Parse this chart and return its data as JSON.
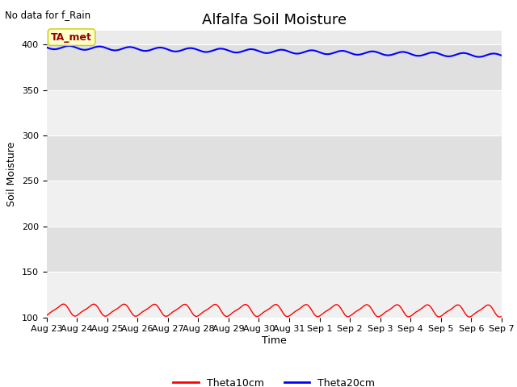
{
  "title": "Alfalfa Soil Moisture",
  "ylabel": "Soil Moisture",
  "xlabel": "Time",
  "no_data_text": "No data for f_Rain",
  "ta_met_label": "TA_met",
  "ylim": [
    100,
    415
  ],
  "yticks": [
    100,
    150,
    200,
    250,
    300,
    350,
    400
  ],
  "n_days": 15,
  "x_tick_labels": [
    "Aug 23",
    "Aug 24",
    "Aug 25",
    "Aug 26",
    "Aug 27",
    "Aug 28",
    "Aug 29",
    "Aug 30",
    "Aug 31",
    "Sep 1",
    "Sep 2",
    "Sep 3",
    "Sep 4",
    "Sep 5",
    "Sep 6",
    "Sep 7"
  ],
  "blue_line_color": "#0000ff",
  "red_line_color": "#ff0000",
  "bg_color": "#ebebeb",
  "band_color_light": "#f0f0f0",
  "band_color_dark": "#e0e0e0",
  "fig_bg_color": "#ffffff",
  "legend_labels": [
    "Theta10cm",
    "Theta20cm"
  ],
  "title_fontsize": 13,
  "axis_label_fontsize": 9,
  "tick_label_fontsize": 8,
  "ta_met_box_color": "#ffffcc",
  "ta_met_text_color": "#990000",
  "ta_met_edge_color": "#cccc00"
}
